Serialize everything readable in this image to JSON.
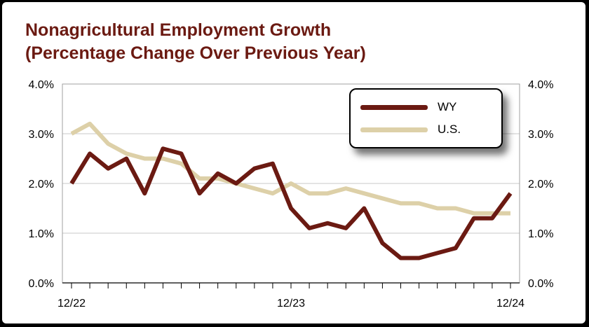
{
  "chart_data": {
    "type": "line",
    "title": [
      "Nonagricultural Employment Growth",
      "(Percentage Change Over Previous Year)"
    ],
    "xlabel": "",
    "ylabel": "",
    "ylim": [
      0,
      4
    ],
    "y_ticks": [
      0,
      1,
      2,
      3,
      4
    ],
    "y_tick_labels": [
      "0.0%",
      "1.0%",
      "2.0%",
      "3.0%",
      "4.0%"
    ],
    "y_tick_labels_right": [
      "0.0%",
      "1.0%",
      "2.0%",
      "3.0%",
      "4.0%"
    ],
    "x": [
      "12/22",
      "1/23",
      "2/23",
      "3/23",
      "4/23",
      "5/23",
      "6/23",
      "7/23",
      "8/23",
      "9/23",
      "10/23",
      "11/23",
      "12/23",
      "1/24",
      "2/24",
      "3/24",
      "4/24",
      "5/24",
      "6/24",
      "7/24",
      "8/24",
      "9/24",
      "10/24",
      "11/24",
      "12/24"
    ],
    "x_tick_labels": [
      {
        "index": 0,
        "label": "12/22"
      },
      {
        "index": 12,
        "label": "12/23"
      },
      {
        "index": 24,
        "label": "12/24"
      }
    ],
    "grid": "horizontal",
    "legend_position": "top-right",
    "series": [
      {
        "name": "WY",
        "color": "#6b1a12",
        "values": [
          2.0,
          2.6,
          2.3,
          2.5,
          1.8,
          2.7,
          2.6,
          1.8,
          2.2,
          2.0,
          2.3,
          2.4,
          1.5,
          1.1,
          1.2,
          1.1,
          1.5,
          0.8,
          0.5,
          0.5,
          0.6,
          0.7,
          1.3,
          1.3,
          1.8
        ]
      },
      {
        "name": "U.S.",
        "color": "#ddd0a8",
        "values": [
          3.0,
          3.2,
          2.8,
          2.6,
          2.5,
          2.5,
          2.4,
          2.1,
          2.1,
          2.0,
          1.9,
          1.8,
          2.0,
          1.8,
          1.8,
          1.9,
          1.8,
          1.7,
          1.6,
          1.6,
          1.5,
          1.5,
          1.4,
          1.4,
          1.4
        ]
      }
    ]
  }
}
